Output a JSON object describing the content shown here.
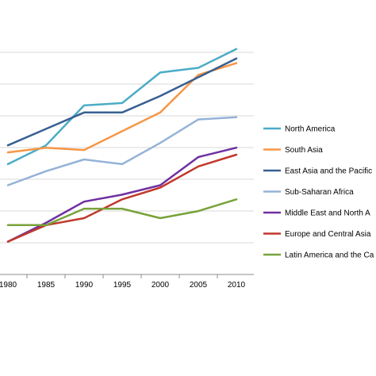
{
  "chart_data": {
    "type": "line",
    "title": "",
    "xlabel": "",
    "ylabel": "",
    "categories": [
      "1980",
      "1985",
      "1990",
      "1995",
      "2000",
      "2005",
      "2010"
    ],
    "ylim": [
      0,
      100
    ],
    "grid": true,
    "legend_position": "right",
    "series": [
      {
        "name": "North America",
        "color": "#4BACC6",
        "values": [
          47,
          55,
          72,
          73,
          86,
          88,
          96
        ]
      },
      {
        "name": "South Asia",
        "color": "#F79646",
        "values": [
          52,
          54,
          53,
          61,
          69,
          85,
          90
        ]
      },
      {
        "name": "East Asia and the Pacific",
        "color": "#376092",
        "values": [
          55,
          62,
          69,
          69,
          76,
          84,
          92
        ]
      },
      {
        "name": "Sub-Saharan Africa",
        "color": "#95B3D7",
        "values": [
          38,
          44,
          49,
          47,
          56,
          66,
          67
        ]
      },
      {
        "name": "Middle East and North A",
        "color": "#7030A0",
        "values": [
          14,
          22,
          31,
          34,
          38,
          50,
          54
        ]
      },
      {
        "name": "Europe and Central Asia",
        "color": "#C0392B",
        "values": [
          14,
          21,
          24,
          32,
          37,
          46,
          51
        ]
      },
      {
        "name": "Latin America and the Ca",
        "color": "#77A33A",
        "values": [
          21,
          21,
          28,
          28,
          24,
          27,
          32
        ]
      }
    ]
  }
}
